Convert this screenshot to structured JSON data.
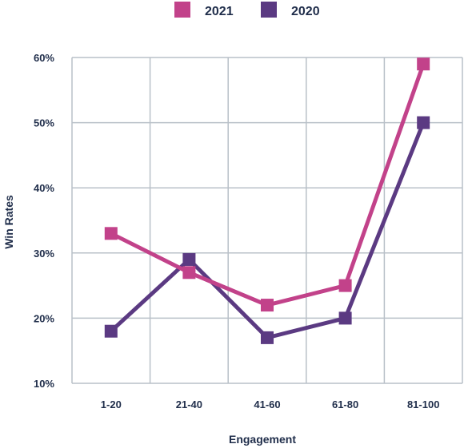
{
  "chart_data": {
    "type": "line",
    "title": "",
    "xlabel": "Engagement",
    "ylabel": "Win Rates",
    "categories": [
      "1-20",
      "21-40",
      "41-60",
      "61-80",
      "81-100"
    ],
    "y_ticks": [
      "10%",
      "20%",
      "30%",
      "40%",
      "50%",
      "60%"
    ],
    "ylim": [
      10,
      60
    ],
    "grid": true,
    "legend_position": "top-center",
    "series": [
      {
        "name": "2021",
        "color": "#c2428a",
        "values": [
          33,
          27,
          22,
          25,
          59
        ]
      },
      {
        "name": "2020",
        "color": "#5b3a82",
        "values": [
          18,
          29,
          17,
          20,
          50
        ]
      }
    ]
  }
}
